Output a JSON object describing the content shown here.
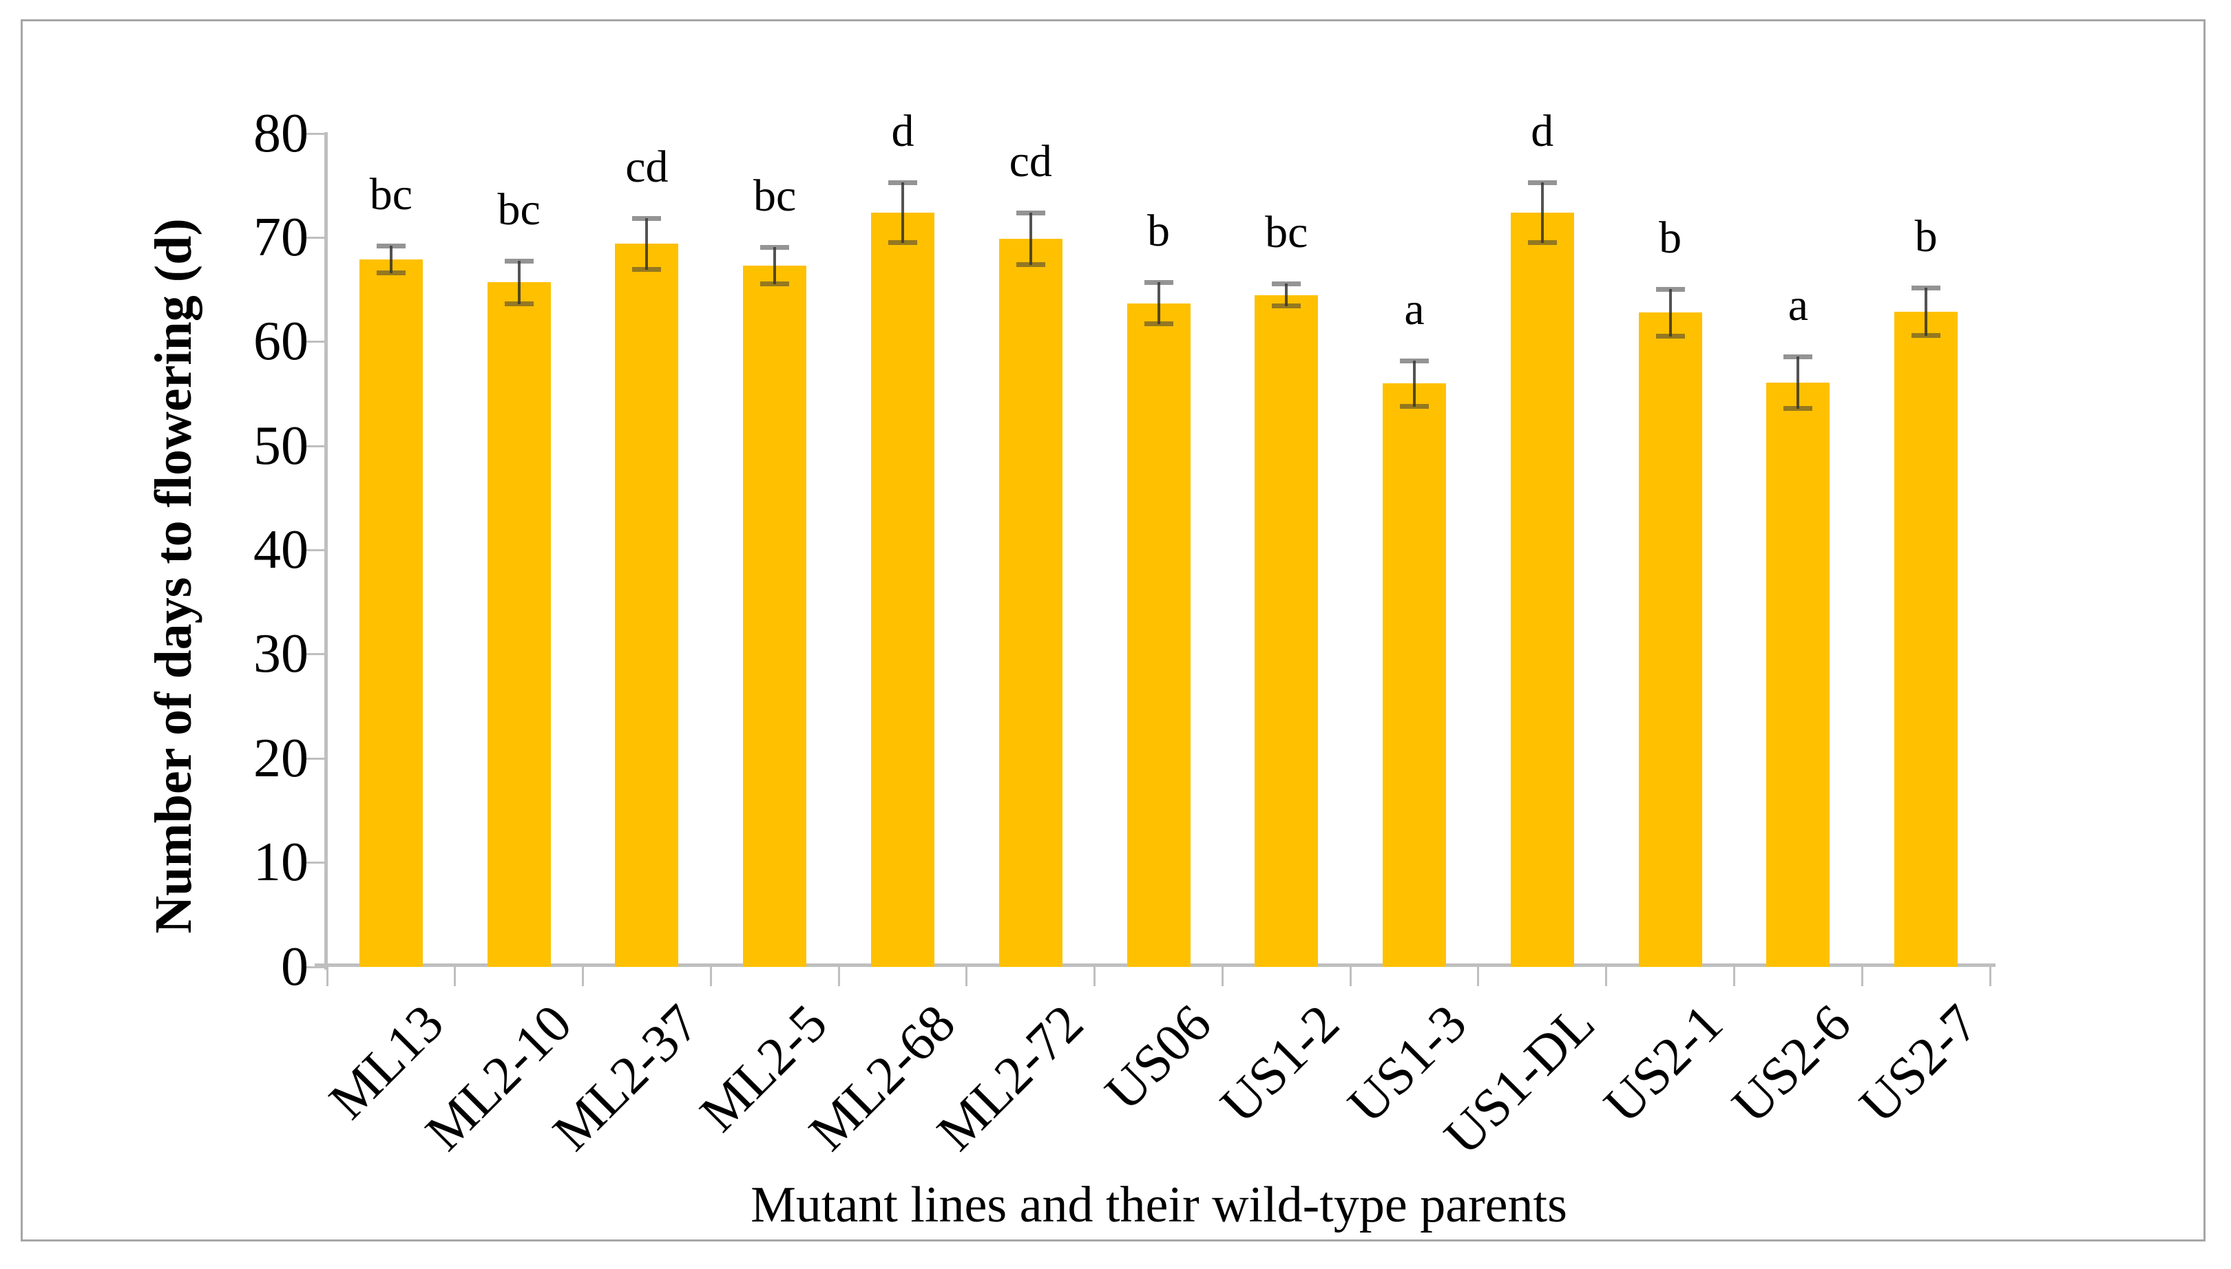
{
  "figure": {
    "y_axis_title": "Number of days to flowering (d)",
    "x_axis_title": "Mutant lines and their wild-type parents"
  },
  "chart_data": {
    "type": "bar",
    "title": "",
    "xlabel": "Mutant lines and their wild-type parents",
    "ylabel": "Number of days to flowering (d)",
    "ylim": [
      0,
      80
    ],
    "y_ticks": [
      0,
      10,
      20,
      30,
      40,
      50,
      60,
      70,
      80
    ],
    "grid": false,
    "legend": false,
    "categories": [
      "ML13",
      "ML2-10",
      "ML2-37",
      "ML2-5",
      "ML2-68",
      "ML2-72",
      "US06",
      "US1-2",
      "US1-3",
      "US1-DL",
      "US2-1",
      "US2-6",
      "US2-7"
    ],
    "values": [
      67.9,
      65.7,
      69.4,
      67.3,
      72.4,
      69.9,
      63.7,
      64.5,
      56.0,
      72.4,
      62.8,
      56.1,
      62.9
    ],
    "errors": [
      1.3,
      2.1,
      2.5,
      1.8,
      2.9,
      2.5,
      2.0,
      1.1,
      2.2,
      2.9,
      2.3,
      2.5,
      2.3
    ],
    "sig_letters": [
      "bc",
      "bc",
      "cd",
      "bc",
      "d",
      "cd",
      "b",
      "bc",
      "a",
      "d",
      "b",
      "a",
      "b"
    ],
    "colors": {
      "bar_fill": "#FFC000",
      "axis": "#BFBFBF",
      "error_line": "#404040",
      "error_cap": "#8C8C8C",
      "text": "#000000",
      "frame": "#A6A6A6"
    }
  }
}
